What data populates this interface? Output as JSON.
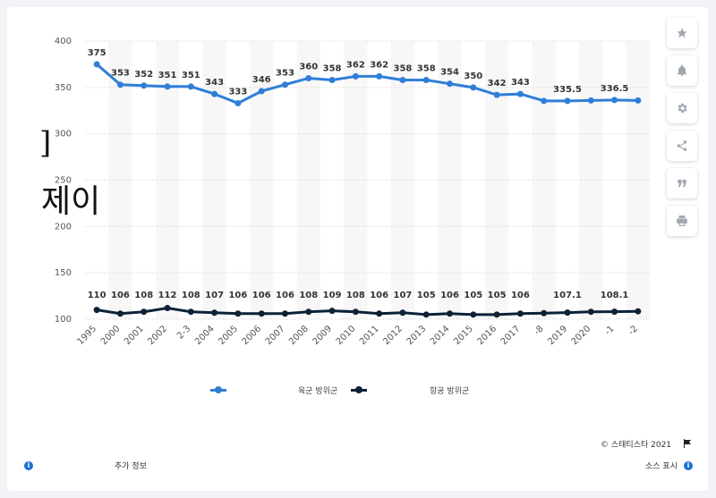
{
  "chart_data": {
    "type": "line",
    "x": [
      "1995",
      "2000",
      "2001",
      "2002",
      "2003",
      "2004",
      "2005",
      "2006",
      "2007",
      "2008",
      "2009",
      "2010",
      "2011",
      "2012",
      "2013",
      "2014",
      "2015",
      "2016",
      "2017",
      "2018",
      "2019",
      "2020",
      "2021",
      "2022"
    ],
    "x_tick_labels": [
      "1995",
      "2000",
      "2001",
      "2002",
      "2-3",
      "2004",
      "2005",
      "2006",
      "2007",
      "2008",
      "2009",
      "2010",
      "2011",
      "2012",
      "2013",
      "2014",
      "2015",
      "2016",
      "2017",
      "-8",
      "2019",
      "2020",
      "-1",
      "-2"
    ],
    "ylim": [
      100,
      400
    ],
    "y_ticks": [
      "100",
      "150",
      "200",
      "250",
      "300",
      "350",
      "400"
    ],
    "grid": true,
    "legend_position": "bottom",
    "series": [
      {
        "name": "육군 방위군",
        "color": "#2f7ed8",
        "values": [
          375,
          353,
          352,
          351,
          351,
          343,
          333,
          346,
          353,
          360,
          358,
          362,
          362,
          358,
          358,
          354,
          350,
          342,
          343,
          335.5,
          335.5,
          336,
          336.5,
          336
        ],
        "labels": [
          "375",
          "353",
          "352",
          "351",
          "351",
          "343",
          "333",
          "346",
          "353",
          "360",
          "358",
          "362",
          "362",
          "358",
          "358",
          "354",
          "350",
          "342",
          "343",
          "",
          "335.5",
          "",
          "336.5",
          ""
        ]
      },
      {
        "name": "항공 방위군",
        "color": "#0d2137",
        "values": [
          110,
          106,
          108,
          112,
          108,
          107,
          106,
          106,
          106,
          108,
          109,
          108,
          106,
          107,
          105,
          106,
          105,
          105,
          106,
          106.5,
          107.1,
          108,
          108.1,
          108.5
        ],
        "labels": [
          "110",
          "106",
          "108",
          "112",
          "108",
          "107",
          "106",
          "106",
          "106",
          "108",
          "109",
          "108",
          "106",
          "107",
          "105",
          "106",
          "105",
          "105",
          "106",
          "",
          "107.1",
          "",
          "108.1",
          ""
        ]
      }
    ]
  },
  "overlay": {
    "bracket": "]",
    "word": "제이"
  },
  "footer": {
    "copyright": "©  스태티스타 2021",
    "more_info": "추가 정보",
    "source": "소스 표시"
  },
  "sidebar_icons": [
    "star-icon",
    "bell-icon",
    "gear-icon",
    "share-icon",
    "quote-icon",
    "print-icon"
  ],
  "colors": {
    "army": "#2f7ed8",
    "air": "#0d2137",
    "accent": "#1a6fd1"
  }
}
